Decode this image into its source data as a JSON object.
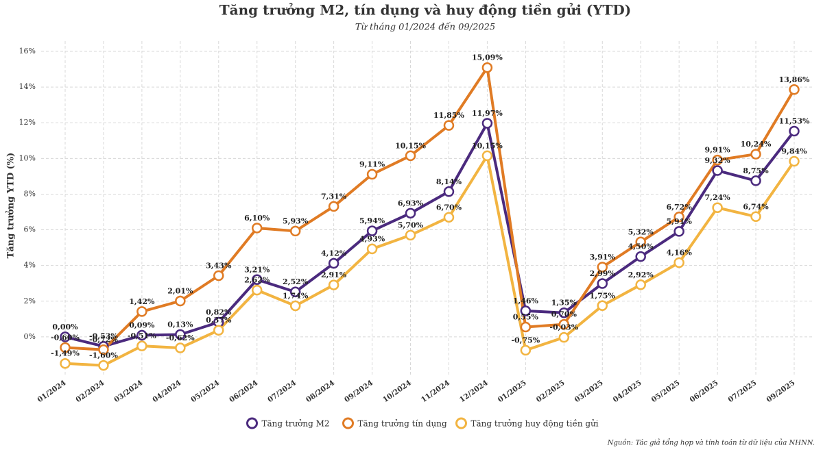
{
  "chart_data": {
    "type": "line",
    "title": "Tăng trưởng M2, tín dụng và huy động tiền gửi (YTD)",
    "subtitle": "Từ tháng 01/2024 đến 09/2025",
    "y_label": "Tăng trưởng YTD (%)",
    "source": "Nguồn: Tác giả tổng hợp và tính toán từ dữ liệu của NHNN.",
    "categories": [
      "01/2024",
      "02/2024",
      "03/2024",
      "04/2024",
      "05/2024",
      "06/2024",
      "07/2024",
      "08/2024",
      "09/2024",
      "10/2024",
      "11/2024",
      "12/2024",
      "01/2025",
      "02/2025",
      "03/2025",
      "04/2025",
      "05/2025",
      "06/2025",
      "07/2025",
      "09/2025"
    ],
    "ylim": [
      -2,
      16
    ],
    "yticks": [
      {
        "value": 0,
        "label": "0%"
      },
      {
        "value": 2,
        "label": "2%"
      },
      {
        "value": 4,
        "label": "4%"
      },
      {
        "value": 6,
        "label": "6%"
      },
      {
        "value": 8,
        "label": "8%"
      },
      {
        "value": 10,
        "label": "10%"
      },
      {
        "value": 12,
        "label": "12%"
      },
      {
        "value": 14,
        "label": "14%"
      },
      {
        "value": 16,
        "label": "16%"
      }
    ],
    "grid": true,
    "legend": "bottom",
    "series": [
      {
        "name": "Tăng trưởng M2",
        "color": "#4b2a7e",
        "values": [
          0.0,
          -0.53,
          0.09,
          0.13,
          0.82,
          3.21,
          2.52,
          4.12,
          5.94,
          6.93,
          8.14,
          11.97,
          1.46,
          1.35,
          2.99,
          4.5,
          5.91,
          9.32,
          8.75,
          11.53
        ],
        "value_labels": [
          "0,00%",
          "-0,53%",
          "0,09%",
          "0,13%",
          "0,82%",
          "3,21%",
          "2,52%",
          "4,12%",
          "5,94%",
          "6,93%",
          "8,14%",
          "11,97%",
          "1,46%",
          "1,35%",
          "2,99%",
          "4,50%",
          "5,91%",
          "9,32%",
          "8,75%",
          "11,53%"
        ]
      },
      {
        "name": "Tăng trưởng tín dụng",
        "color": "#e07b24",
        "values": [
          -0.6,
          -0.72,
          1.42,
          2.01,
          3.43,
          6.1,
          5.93,
          7.31,
          9.11,
          10.15,
          11.85,
          15.09,
          0.55,
          0.7,
          3.91,
          5.32,
          6.72,
          9.91,
          10.24,
          13.86
        ],
        "value_labels": [
          "-0,60%",
          "-0,72%",
          "1,42%",
          "2,01%",
          "3,43%",
          "6,10%",
          "5,93%",
          "7,31%",
          "9,11%",
          "10,15%",
          "11,85%",
          "15,09%",
          "0,55%",
          "0,70%",
          "3,91%",
          "5,32%",
          "6,72%",
          "9,91%",
          "10,24%",
          "13,86%"
        ]
      },
      {
        "name": "Tăng trưởng huy động tiền gửi",
        "color": "#f2b441",
        "values": [
          -1.49,
          -1.6,
          -0.51,
          -0.62,
          0.37,
          2.62,
          1.74,
          2.91,
          4.93,
          5.7,
          6.7,
          10.15,
          -0.75,
          -0.03,
          1.75,
          2.92,
          4.16,
          7.24,
          6.74,
          9.84
        ],
        "value_labels": [
          "-1,49%",
          "-1,60%",
          "-0,51%",
          "-0,62%",
          "0,37%",
          "2,62%",
          "1,74%",
          "2,91%",
          "4,93%",
          "5,70%",
          "6,70%",
          "10,15%",
          "-0,75%",
          "-0,03%",
          "1,75%",
          "2,92%",
          "4,16%",
          "7,24%",
          "6,74%",
          "9,84%"
        ]
      }
    ]
  }
}
